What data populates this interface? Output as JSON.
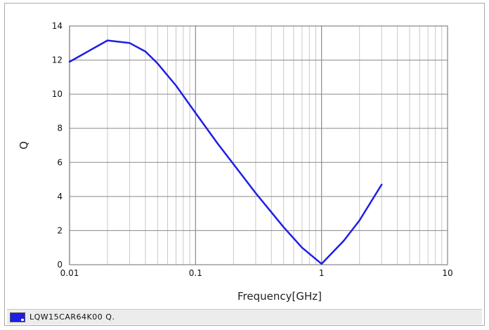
{
  "chart_data": {
    "type": "line",
    "title": "",
    "xlabel": "Frequency[GHz]",
    "ylabel": "Q",
    "xscale": "log",
    "xlim": [
      0.01,
      10
    ],
    "ylim": [
      0,
      14
    ],
    "xticks": [
      0.01,
      0.1,
      1,
      10
    ],
    "xtick_labels": [
      "0.01",
      "0.1",
      "1",
      "10"
    ],
    "yticks": [
      0,
      2,
      4,
      6,
      8,
      10,
      12,
      14
    ],
    "ytick_labels": [
      "0",
      "2",
      "4",
      "6",
      "8",
      "10",
      "12",
      "14"
    ],
    "grid": true,
    "legend_position": "bottom-left",
    "series": [
      {
        "name": "LQW15CAR64K00  Q.",
        "color": "#1e1ee6",
        "x": [
          0.01,
          0.02,
          0.03,
          0.04,
          0.05,
          0.07,
          0.1,
          0.15,
          0.2,
          0.3,
          0.5,
          0.7,
          1.0,
          1.5,
          2.0,
          3.0
        ],
        "y": [
          11.9,
          13.15,
          13.0,
          12.5,
          11.8,
          10.5,
          8.9,
          7.1,
          5.9,
          4.2,
          2.2,
          1.0,
          0.05,
          1.4,
          2.6,
          4.7
        ]
      }
    ]
  }
}
